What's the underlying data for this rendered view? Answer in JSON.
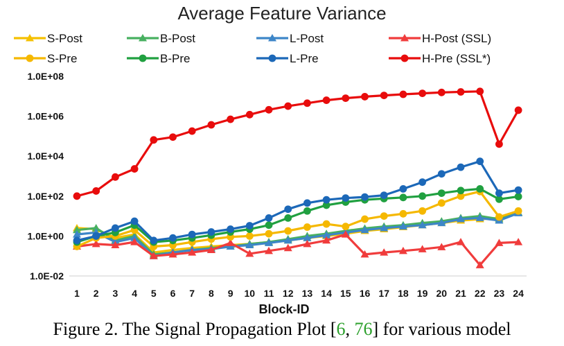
{
  "chart_data": {
    "type": "line",
    "title": "Average Feature Variance",
    "xlabel": "Block-ID",
    "ylabel": "",
    "yscale": "log",
    "ylim": [
      0.01,
      100000000
    ],
    "yticks": [
      "1.0E-02",
      "1.0E+00",
      "1.0E+02",
      "1.0E+04",
      "1.0E+06",
      "1.0E+08"
    ],
    "ytick_values": [
      0.01,
      1,
      100,
      10000,
      1000000,
      100000000
    ],
    "x": [
      1,
      2,
      3,
      4,
      5,
      6,
      7,
      8,
      9,
      10,
      11,
      12,
      13,
      14,
      15,
      16,
      17,
      18,
      19,
      20,
      21,
      22,
      23,
      24
    ],
    "legend_position": "top",
    "grid": false,
    "series": [
      {
        "name": "S-Post",
        "color": "#f5c000",
        "marker": "triangle",
        "values": [
          2.5,
          2.2,
          0.8,
          1.2,
          0.15,
          0.2,
          0.25,
          0.3,
          0.35,
          0.4,
          0.5,
          0.6,
          0.8,
          1.0,
          1.3,
          1.8,
          2.2,
          2.8,
          3.5,
          4.5,
          6,
          7,
          8,
          15
        ]
      },
      {
        "name": "B-Post",
        "color": "#48b060",
        "marker": "triangle",
        "values": [
          2.0,
          2.5,
          0.6,
          1.0,
          0.12,
          0.15,
          0.2,
          0.25,
          0.3,
          0.4,
          0.5,
          0.7,
          1.0,
          1.3,
          1.8,
          2.4,
          3,
          3.5,
          4.5,
          5.5,
          8,
          10,
          7,
          15
        ]
      },
      {
        "name": "L-Post",
        "color": "#3d86c8",
        "marker": "triangle",
        "values": [
          1.2,
          1.5,
          0.5,
          0.8,
          0.1,
          0.15,
          0.2,
          0.22,
          0.3,
          0.35,
          0.45,
          0.6,
          0.8,
          1.1,
          1.5,
          2.0,
          2.5,
          3.0,
          3.5,
          4.5,
          7,
          8,
          6,
          14
        ]
      },
      {
        "name": "H-Post (SSL)",
        "color": "#f03c3c",
        "marker": "triangle",
        "values": [
          0.3,
          0.4,
          0.35,
          0.5,
          0.1,
          0.12,
          0.15,
          0.2,
          0.45,
          0.13,
          0.18,
          0.25,
          0.4,
          0.6,
          1.2,
          0.12,
          0.15,
          0.18,
          0.22,
          0.28,
          0.5,
          0.035,
          0.45,
          0.5
        ]
      },
      {
        "name": "S-Pre",
        "color": "#f5b800",
        "marker": "circle",
        "values": [
          0.3,
          0.8,
          1.0,
          2.0,
          0.3,
          0.35,
          0.5,
          0.7,
          0.9,
          1.0,
          1.3,
          1.8,
          2.8,
          4.0,
          3.0,
          7,
          10,
          13,
          18,
          45,
          100,
          170,
          9,
          18
        ]
      },
      {
        "name": "B-Pre",
        "color": "#20a040",
        "marker": "circle",
        "values": [
          0.5,
          1.0,
          1.5,
          3.5,
          0.5,
          0.6,
          0.8,
          1.1,
          1.6,
          2.2,
          3.5,
          8,
          18,
          35,
          50,
          65,
          75,
          85,
          100,
          140,
          190,
          230,
          70,
          95
        ]
      },
      {
        "name": "L-Pre",
        "color": "#1c68b8",
        "marker": "circle",
        "values": [
          0.6,
          1.0,
          2.5,
          5.5,
          0.6,
          0.8,
          1.2,
          1.6,
          2.2,
          3.3,
          8,
          22,
          45,
          65,
          80,
          90,
          110,
          230,
          500,
          1300,
          2800,
          5500,
          140,
          200
        ]
      },
      {
        "name": "H-Pre (SSL*)",
        "color": "#e80c0c",
        "marker": "circle",
        "values": [
          100,
          180,
          900,
          2300,
          65000,
          90000,
          180000,
          370000,
          700000,
          1200000,
          2100000,
          3200000,
          4500000,
          6300000,
          8000000,
          9500000,
          11000000,
          12500000,
          14000000,
          15500000,
          16500000,
          17500000,
          40000,
          2000000
        ]
      }
    ]
  },
  "caption": {
    "prefix": "Figure 2.  The Signal Propagation Plot [",
    "cite1": "6",
    "sep": ", ",
    "cite2": "76",
    "suffix": "] for various model"
  }
}
